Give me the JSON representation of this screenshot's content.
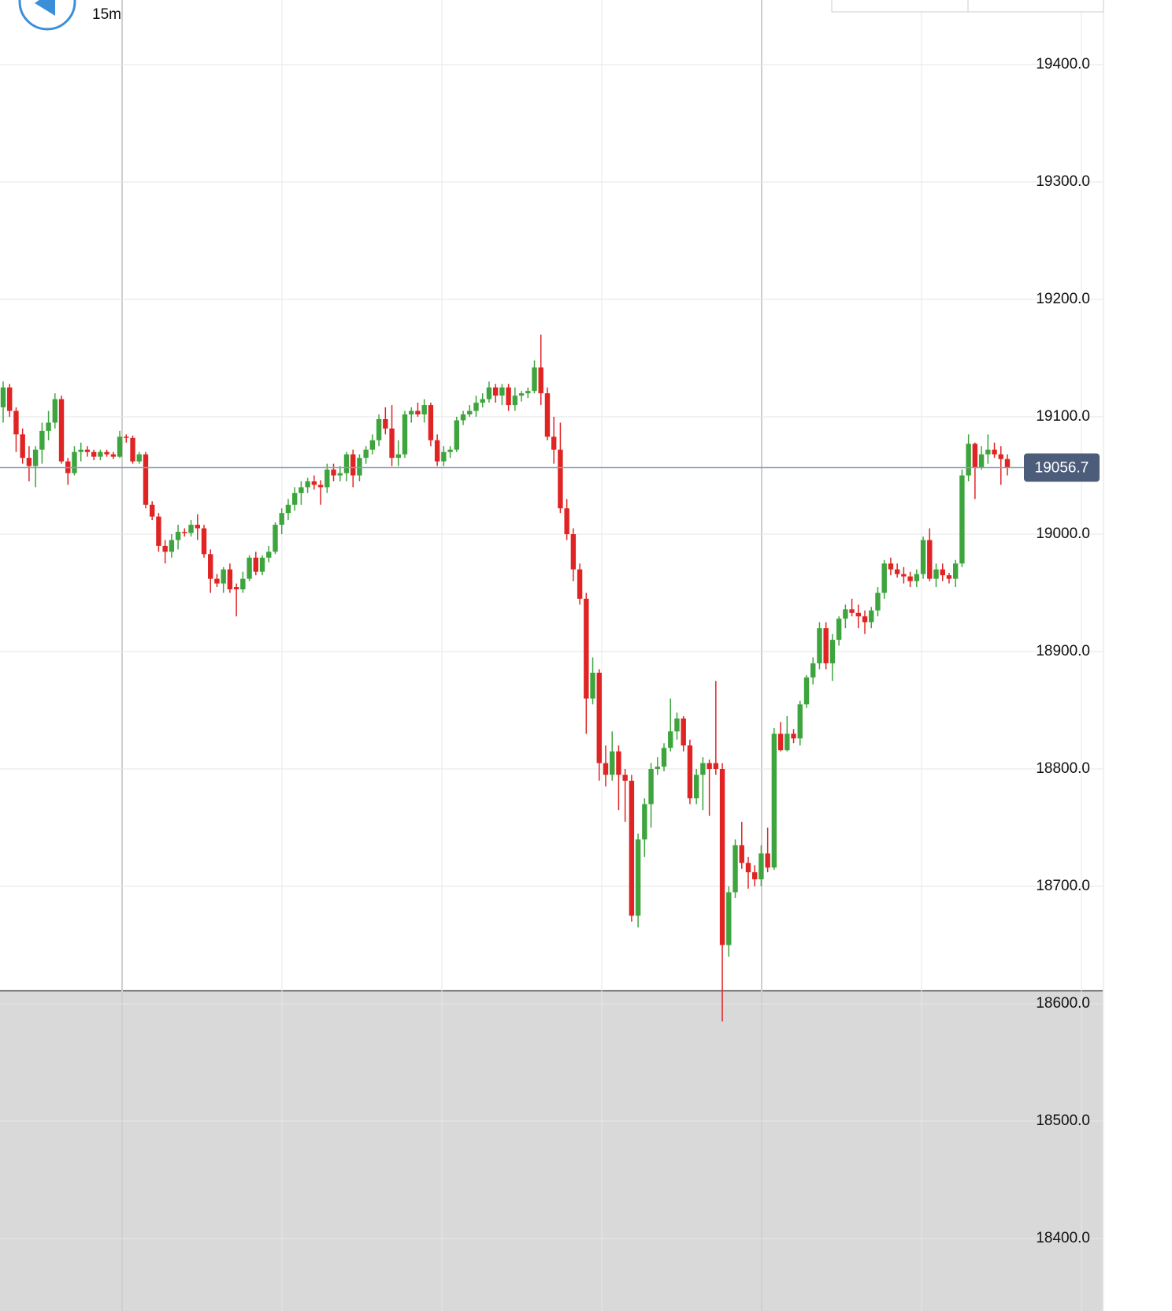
{
  "chart_data": {
    "type": "candlestick",
    "timeframe": "15m",
    "up_color": "#3ea53e",
    "down_color": "#e02424",
    "ylim": [
      18338.3,
      19455
    ],
    "yticks": [
      {
        "value": 18400,
        "label": "18400.0"
      },
      {
        "value": 18500,
        "label": "18500.0"
      },
      {
        "value": 18600,
        "label": "18600.0"
      },
      {
        "value": 18700,
        "label": "18700.0"
      },
      {
        "value": 18800,
        "label": "18800.0"
      },
      {
        "value": 18900,
        "label": "18900.0"
      },
      {
        "value": 19000,
        "label": "19000.0"
      },
      {
        "value": 19100,
        "label": "19100.0"
      },
      {
        "value": 19200,
        "label": "19200.0"
      },
      {
        "value": 19300,
        "label": "19300.0"
      },
      {
        "value": 19400,
        "label": "19400.0"
      }
    ],
    "grid": true,
    "last_price": {
      "value": 19056.7,
      "label": "19056.7"
    },
    "shaded_below": 18611,
    "open": [
      19108,
      19125,
      19105,
      19085,
      19065,
      19058,
      19072,
      19088,
      19095,
      19115,
      19062,
      19052,
      19070,
      19072,
      19070,
      19066,
      19070,
      19068,
      19066,
      19083,
      19082,
      19062,
      19068,
      19025,
      19015,
      18990,
      18985,
      18995,
      19002,
      19001,
      19008,
      19005,
      18983,
      18962,
      18958,
      18970,
      18955,
      18953,
      18962,
      18980,
      18968,
      18980,
      18985,
      19008,
      19018,
      19025,
      19035,
      19040,
      19045,
      19042,
      19040,
      19055,
      19050,
      19052,
      19068,
      19050,
      19065,
      19072,
      19080,
      19098,
      19090,
      19065,
      19068,
      19102,
      19105,
      19102,
      19110,
      19080,
      19062,
      19070,
      19072,
      19097,
      19102,
      19105,
      19112,
      19115,
      19125,
      19118,
      19125,
      19110,
      19118,
      19120,
      19122,
      19142,
      19120,
      19083,
      19072,
      19022,
      19000,
      18970,
      18945,
      18860,
      18882,
      18805,
      18795,
      18815,
      18795,
      18790,
      18675,
      18740,
      18770,
      18800,
      18802,
      18818,
      18832,
      18843,
      18820,
      18775,
      18795,
      18805,
      18805,
      18800,
      18650,
      18695,
      18735,
      18720,
      18712,
      18706,
      18728,
      18716,
      18830,
      18816,
      18830,
      18826,
      18855,
      18878,
      18890,
      18920,
      18890,
      18910,
      18928,
      18936,
      18933,
      18930,
      18925,
      18935,
      18950,
      18975,
      18970,
      18966,
      18964,
      18960,
      18966,
      18995,
      18962,
      18970,
      18965,
      18962,
      18975,
      19050,
      19077,
      19057,
      19068,
      19072,
      19068,
      19064
    ],
    "high": [
      19130,
      19128,
      19108,
      19090,
      19075,
      19075,
      19095,
      19105,
      19120,
      19118,
      19065,
      19075,
      19078,
      19075,
      19072,
      19072,
      19072,
      19070,
      19088,
      19085,
      19084,
      19070,
      19070,
      19028,
      19018,
      18995,
      19000,
      19008,
      19005,
      19012,
      19017,
      19008,
      18987,
      18966,
      18972,
      18975,
      18958,
      18968,
      18982,
      18985,
      18982,
      18990,
      19010,
      19022,
      19030,
      19040,
      19045,
      19048,
      19050,
      19046,
      19060,
      19060,
      19058,
      19070,
      19072,
      19068,
      19075,
      19085,
      19102,
      19108,
      19110,
      19080,
      19105,
      19108,
      19112,
      19115,
      19112,
      19085,
      19075,
      19075,
      19100,
      19105,
      19110,
      19118,
      19120,
      19130,
      19128,
      19128,
      19128,
      19125,
      19122,
      19125,
      19148,
      19170,
      19125,
      19100,
      19095,
      19030,
      19005,
      18975,
      18950,
      18895,
      18885,
      18820,
      18832,
      18820,
      18800,
      18795,
      18745,
      18775,
      18805,
      18810,
      18822,
      18860,
      18848,
      18845,
      18825,
      18800,
      18810,
      18808,
      18875,
      18805,
      18700,
      18740,
      18755,
      18725,
      18718,
      18735,
      18750,
      18835,
      18840,
      18845,
      18834,
      18858,
      18880,
      18895,
      18925,
      18925,
      18915,
      18930,
      18940,
      18945,
      18940,
      18935,
      18938,
      18955,
      18978,
      18980,
      18975,
      18972,
      18968,
      18970,
      18998,
      19005,
      18975,
      18975,
      18967,
      18978,
      19055,
      19085,
      19078,
      19075,
      19085,
      19078,
      19075,
      19068
    ],
    "low": [
      19095,
      19100,
      19070,
      19060,
      19045,
      19040,
      19060,
      19080,
      19090,
      19060,
      19042,
      19050,
      19062,
      19066,
      19063,
      19063,
      19066,
      19064,
      19065,
      19078,
      19060,
      19060,
      19022,
      19012,
      18985,
      18975,
      18980,
      18987,
      18998,
      18998,
      18995,
      18980,
      18950,
      18955,
      18950,
      18950,
      18930,
      18950,
      18960,
      18965,
      18965,
      18976,
      18983,
      19000,
      19012,
      19020,
      19025,
      19035,
      19038,
      19025,
      19035,
      19045,
      19045,
      19045,
      19040,
      19045,
      19060,
      19068,
      19075,
      19085,
      19058,
      19058,
      19065,
      19095,
      19100,
      19095,
      19075,
      19058,
      19058,
      19065,
      19070,
      19093,
      19100,
      19100,
      19108,
      19112,
      19112,
      19110,
      19105,
      19105,
      19113,
      19116,
      19120,
      19110,
      19080,
      19060,
      19018,
      18995,
      18960,
      18940,
      18830,
      18855,
      18790,
      18785,
      18790,
      18765,
      18755,
      18670,
      18665,
      18725,
      18750,
      18795,
      18798,
      18815,
      18825,
      18815,
      18770,
      18770,
      18765,
      18760,
      18795,
      18585,
      18640,
      18690,
      18715,
      18698,
      18700,
      18700,
      18712,
      18714,
      18815,
      18815,
      18822,
      18820,
      18852,
      18872,
      18885,
      18885,
      18875,
      18905,
      18920,
      18930,
      18920,
      18915,
      18920,
      18930,
      18945,
      18965,
      18963,
      18958,
      18955,
      18955,
      18962,
      18960,
      18955,
      18960,
      18958,
      18955,
      18972,
      19045,
      19030,
      19055,
      19060,
      19065,
      19042,
      19050
    ],
    "close": [
      19125,
      19105,
      19085,
      19065,
      19058,
      19072,
      19088,
      19095,
      19115,
      19062,
      19052,
      19070,
      19072,
      19070,
      19066,
      19070,
      19068,
      19066,
      19083,
      19082,
      19062,
      19068,
      19025,
      19015,
      18990,
      18985,
      18995,
      19002,
      19001,
      19008,
      19005,
      18983,
      18962,
      18958,
      18970,
      18953,
      18953,
      18962,
      18980,
      18968,
      18980,
      18985,
      19008,
      19018,
      19025,
      19035,
      19040,
      19045,
      19042,
      19040,
      19055,
      19050,
      19052,
      19068,
      19050,
      19065,
      19072,
      19080,
      19098,
      19090,
      19065,
      19068,
      19102,
      19105,
      19102,
      19110,
      19080,
      19062,
      19070,
      19072,
      19097,
      19102,
      19105,
      19112,
      19115,
      19125,
      19118,
      19125,
      19110,
      19118,
      19120,
      19122,
      19142,
      19120,
      19083,
      19072,
      19022,
      19000,
      18970,
      18945,
      18860,
      18882,
      18805,
      18795,
      18815,
      18795,
      18790,
      18675,
      18740,
      18770,
      18800,
      18802,
      18818,
      18832,
      18843,
      18820,
      18775,
      18795,
      18805,
      18800,
      18800,
      18650,
      18695,
      18735,
      18720,
      18712,
      18706,
      18728,
      18716,
      18830,
      18816,
      18830,
      18826,
      18855,
      18878,
      18890,
      18920,
      18890,
      18910,
      18928,
      18936,
      18933,
      18930,
      18925,
      18935,
      18950,
      18975,
      18970,
      18966,
      18964,
      18960,
      18966,
      18995,
      18962,
      18970,
      18965,
      18962,
      18975,
      19050,
      19077,
      19057,
      19068,
      19072,
      19068,
      19064,
      19056.7
    ]
  }
}
